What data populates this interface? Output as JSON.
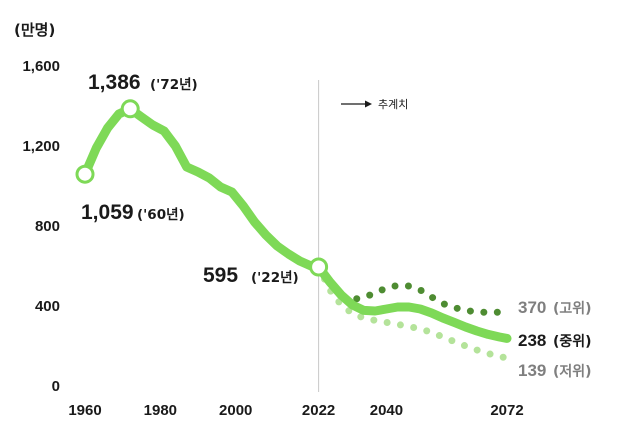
{
  "colors": {
    "actual": "#7ed957",
    "high": "#4e8c32",
    "low": "#b4e39a",
    "text": "#1a1a1a",
    "muted": "#7f7f7f",
    "divider": "#c8c8c8"
  },
  "chart_data": {
    "type": "line",
    "unit_label": "(만명)",
    "xlim": [
      1960,
      2072
    ],
    "ylim": [
      0,
      1600
    ],
    "x_ticks": [
      "1960",
      "1980",
      "2000",
      "2022",
      "2040",
      "2072"
    ],
    "x_tick_values": [
      1960,
      1980,
      2000,
      2022,
      2040,
      2072
    ],
    "y_ticks": [
      "0",
      "400",
      "800",
      "1,200",
      "1,600"
    ],
    "y_tick_values": [
      0,
      400,
      800,
      1200,
      1600
    ],
    "grid": false,
    "projection_start": 2022,
    "projection_label": "추계치",
    "series": [
      {
        "key": "actual",
        "style": "solid",
        "x": [
          1960,
          1963,
          1966,
          1969,
          1972,
          1975,
          1978,
          1981,
          1984,
          1987,
          1990,
          1993,
          1996,
          1999,
          2002,
          2005,
          2008,
          2011,
          2014,
          2017,
          2020,
          2022
        ],
        "y": [
          1059,
          1190,
          1290,
          1360,
          1386,
          1345,
          1305,
          1275,
          1200,
          1095,
          1070,
          1040,
          995,
          970,
          900,
          820,
          755,
          700,
          660,
          625,
          600,
          595
        ]
      },
      {
        "key": "medium",
        "name": "중위",
        "style": "solid",
        "x": [
          2022,
          2025,
          2028,
          2031,
          2034,
          2037,
          2040,
          2043,
          2046,
          2049,
          2052,
          2055,
          2058,
          2061,
          2064,
          2067,
          2070,
          2072
        ],
        "y": [
          595,
          520,
          455,
          405,
          378,
          375,
          385,
          395,
          395,
          385,
          365,
          340,
          318,
          295,
          275,
          258,
          245,
          238
        ]
      },
      {
        "key": "high",
        "name": "고위",
        "style": "dotted",
        "x": [
          2022,
          2025,
          2028,
          2031,
          2034,
          2037,
          2040,
          2043,
          2046,
          2049,
          2052,
          2055,
          2058,
          2061,
          2064,
          2067,
          2070,
          2072
        ],
        "y": [
          595,
          495,
          445,
          432,
          443,
          465,
          490,
          503,
          500,
          480,
          445,
          412,
          392,
          378,
          370,
          368,
          369,
          370
        ]
      },
      {
        "key": "low",
        "name": "저위",
        "style": "dotted",
        "x": [
          2022,
          2025,
          2028,
          2031,
          2034,
          2037,
          2040,
          2043,
          2046,
          2049,
          2052,
          2055,
          2058,
          2061,
          2064,
          2067,
          2070,
          2072
        ],
        "y": [
          595,
          480,
          405,
          362,
          340,
          328,
          318,
          308,
          297,
          286,
          268,
          245,
          222,
          200,
          180,
          162,
          148,
          139
        ]
      }
    ],
    "markers": [
      {
        "x": 1960,
        "y": 1059,
        "value": "1,059",
        "note": "('60년)"
      },
      {
        "x": 1972,
        "y": 1386,
        "value": "1,386",
        "note": "('72년)"
      },
      {
        "x": 2022,
        "y": 595,
        "value": "595",
        "note": "('22년)"
      }
    ],
    "end_labels": [
      {
        "key": "high",
        "value": "370",
        "text": "(고위)",
        "tone": "muted"
      },
      {
        "key": "medium",
        "value": "238",
        "text": "(중위)",
        "tone": "dark"
      },
      {
        "key": "low",
        "value": "139",
        "text": "(저위)",
        "tone": "muted"
      }
    ]
  }
}
